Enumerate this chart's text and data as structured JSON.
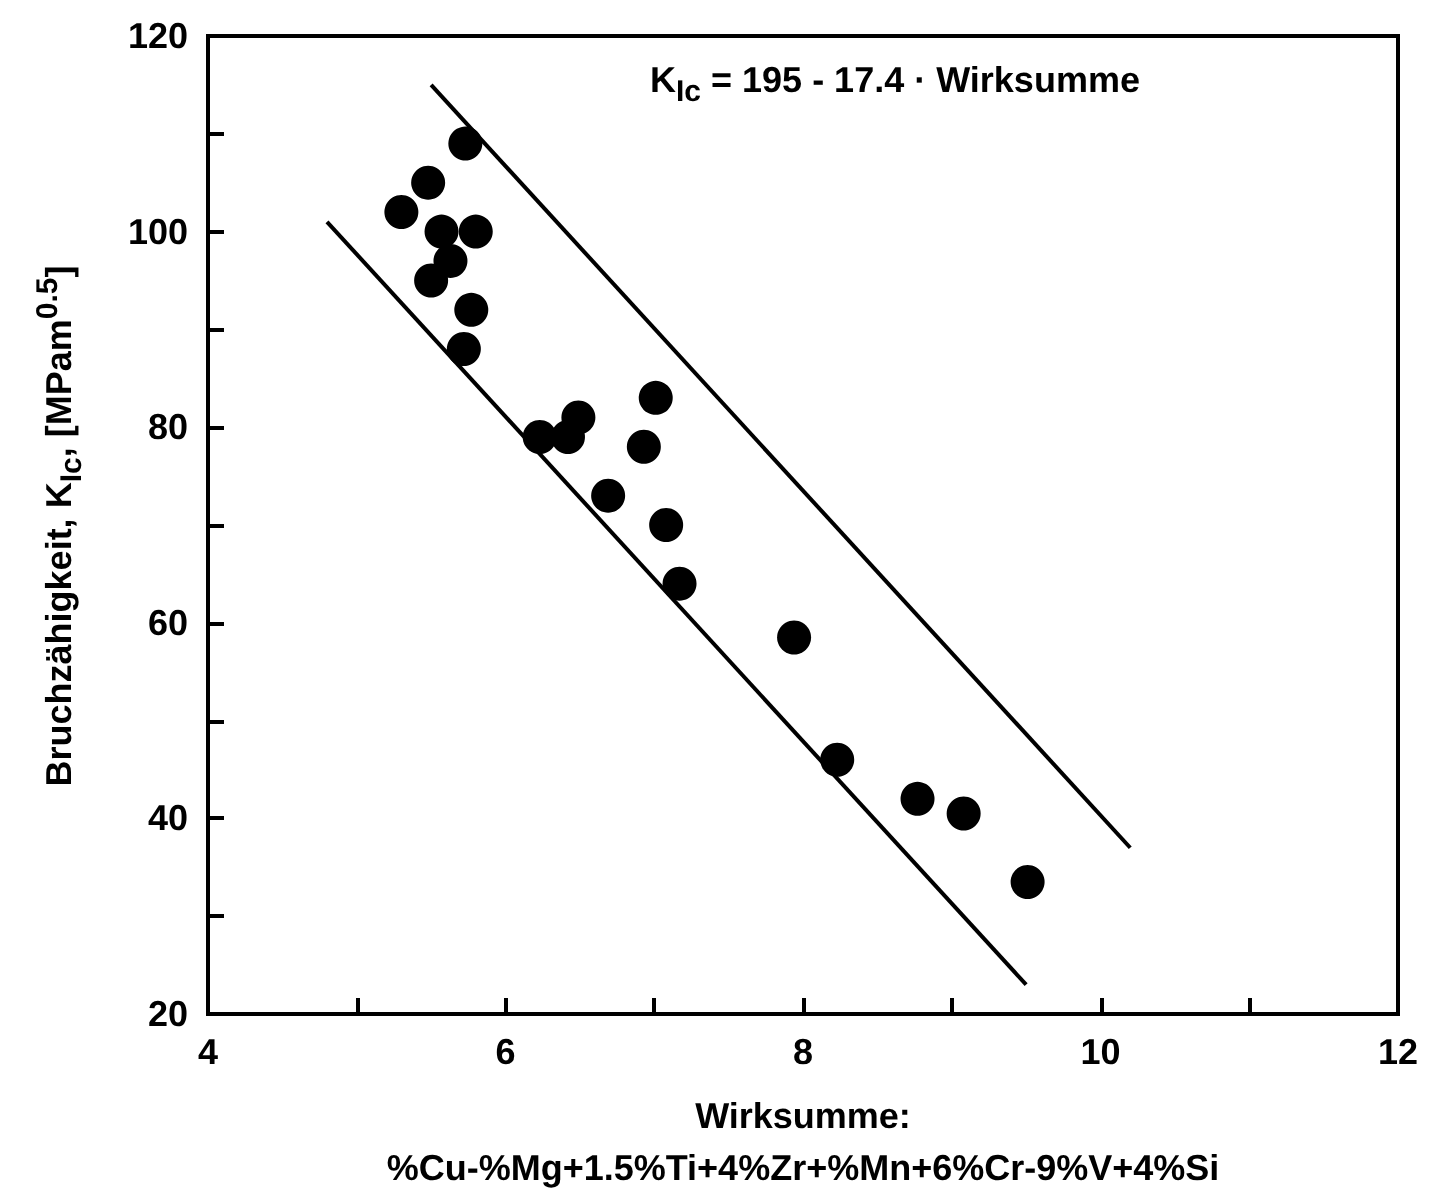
{
  "chart_data": {
    "type": "scatter",
    "xlabel": "Wirksumme:\n%Cu-%Mg+1.5%Ti+4%Zr+%Mn+6%Cr-9%V+4%Si",
    "ylabel": "Bruchzähigkeit, K$_{Ic}$, [MPam$^{0.5}$]",
    "annotations": [
      "K$_{Ic}$ = 195 - 17.4 · Wirksumme"
    ],
    "xlim": [
      4,
      12
    ],
    "xticks": [
      4,
      {
        "value": 5,
        "label": null
      },
      6,
      {
        "value": 7,
        "label": null
      },
      8,
      {
        "value": 9,
        "label": null
      },
      10,
      {
        "value": 11,
        "label": null
      },
      12
    ],
    "ylim": [
      20,
      120
    ],
    "yticks": [
      20,
      {
        "value": 30,
        "label": null
      },
      40,
      {
        "value": 50,
        "label": null
      },
      60,
      {
        "value": 70,
        "label": null
      },
      80,
      {
        "value": 90,
        "label": null
      },
      100,
      {
        "value": 110,
        "label": null
      },
      120
    ],
    "marker": "circle",
    "series": [
      {
        "color": "#000000",
        "x": [
          5.3,
          5.48,
          5.73,
          5.57,
          5.8,
          5.63,
          5.5,
          5.77,
          5.72,
          6.23,
          6.42,
          6.49,
          7.01,
          6.93,
          6.69,
          7.08,
          7.17,
          7.94,
          8.23,
          8.77,
          9.08,
          9.51
        ],
        "values": [
          102,
          105,
          109,
          100,
          100,
          97,
          95,
          92,
          88,
          79,
          79,
          81,
          83,
          78,
          73,
          70,
          64,
          58.5,
          46,
          42,
          40.5,
          33.5
        ]
      },
      {
        "type": "line",
        "color": "#000000",
        "marker": "none",
        "line_style": "solid",
        "x": [
          5.5,
          10.2
        ],
        "values": [
          115,
          37
        ]
      },
      {
        "type": "line",
        "color": "#000000",
        "marker": "none",
        "line_style": "solid",
        "x": [
          4.8,
          9.5
        ],
        "values": [
          101,
          23
        ]
      }
    ]
  }
}
